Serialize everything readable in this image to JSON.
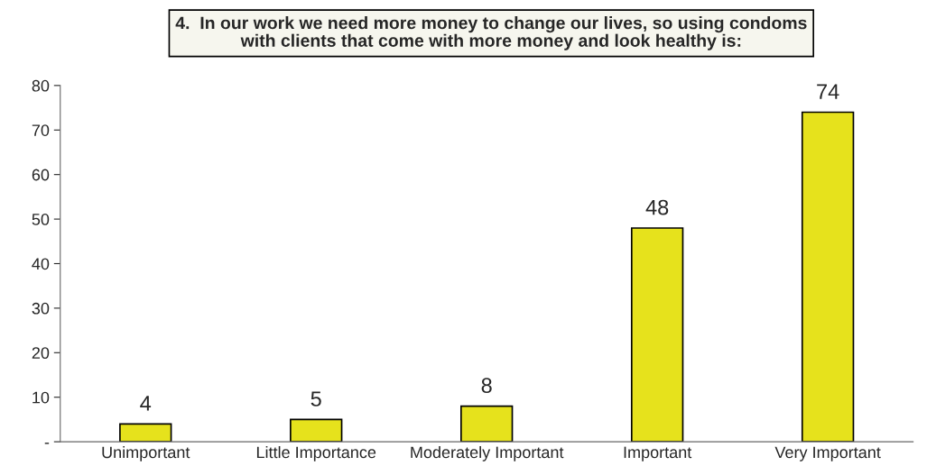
{
  "chart_data": {
    "type": "bar",
    "title": "4.  In our work we need more money to change our lives, so using condoms\nwith clients that come with more money and look healthy is:",
    "categories": [
      "Unimportant",
      "Little Importance",
      "Moderately Important",
      "Important",
      "Very Important"
    ],
    "values": [
      4,
      5,
      8,
      48,
      74
    ],
    "color": "#e6e21c",
    "ylim": [
      0,
      80
    ],
    "yticks": [
      {
        "value": 0,
        "label": "-"
      },
      10,
      20,
      30,
      40,
      50,
      60,
      70,
      80
    ],
    "data_labels": true,
    "grid": false,
    "legend": false
  }
}
